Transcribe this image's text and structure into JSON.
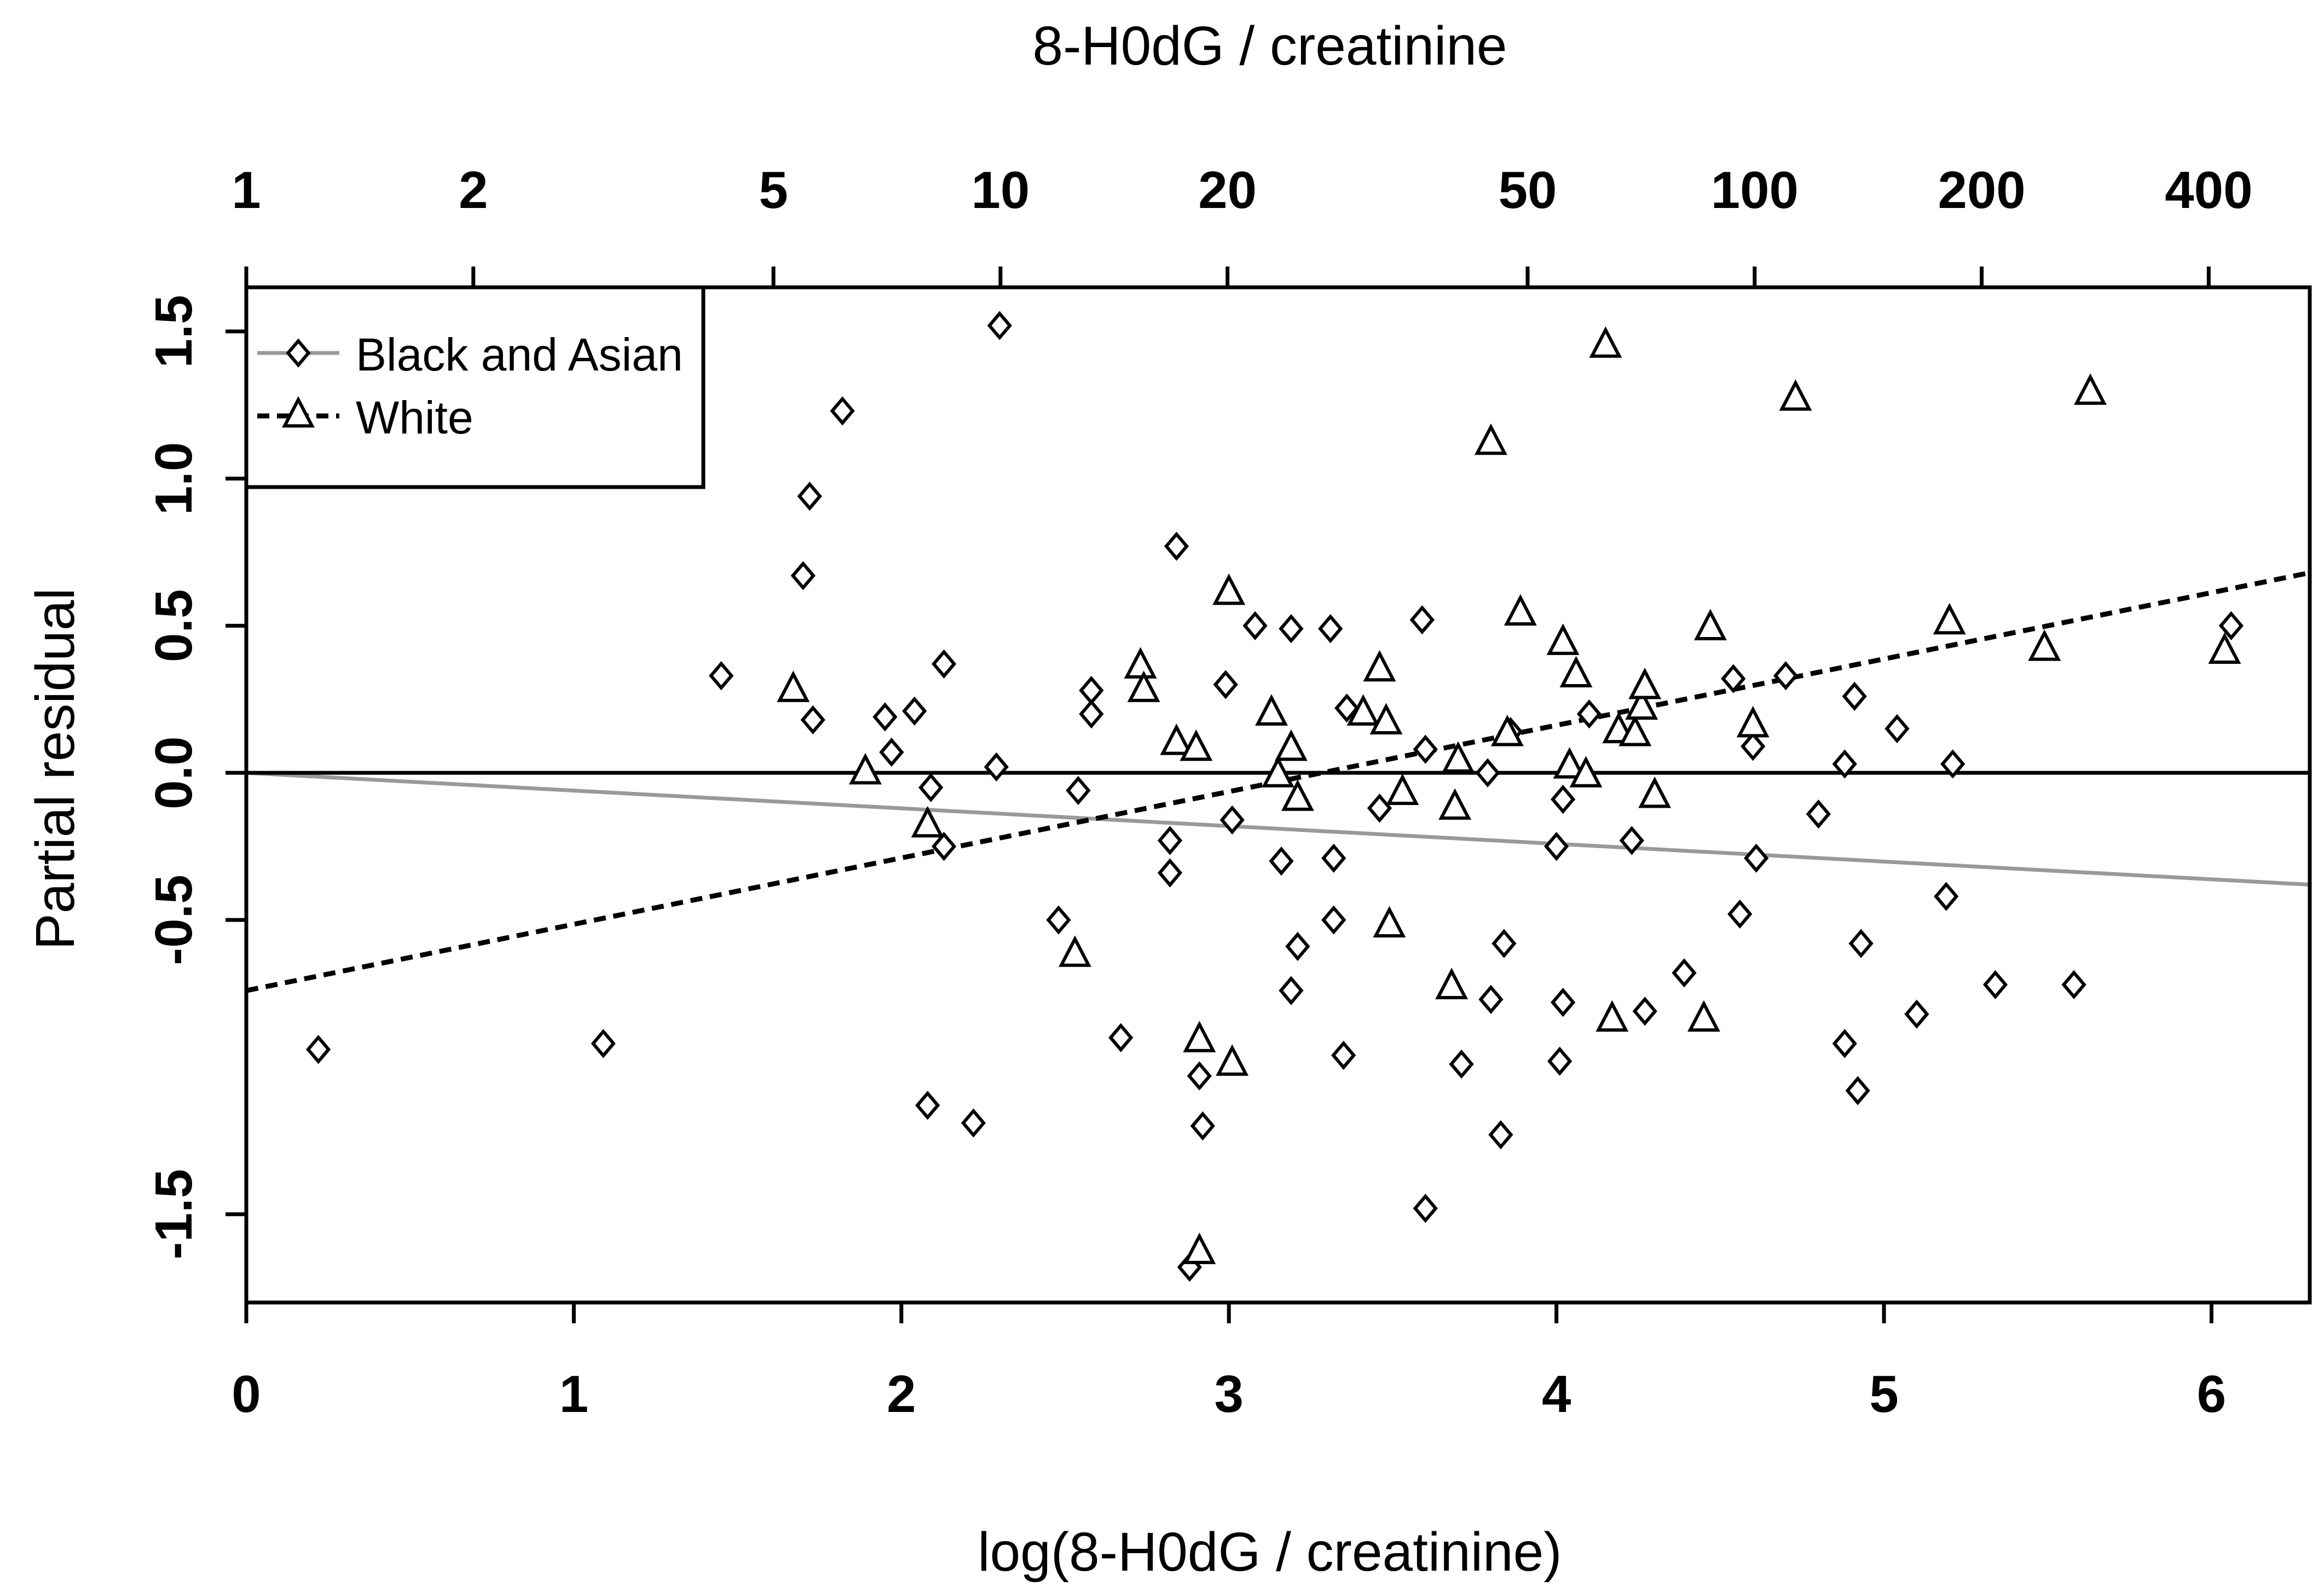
{
  "chart_data": {
    "type": "scatter",
    "title": "",
    "top_axis": {
      "label": "8-H0dG / creatinine",
      "ticks": [
        {
          "label": "1",
          "value": 1
        },
        {
          "label": "2",
          "value": 2
        },
        {
          "label": "5",
          "value": 5
        },
        {
          "label": "10",
          "value": 10
        },
        {
          "label": "20",
          "value": 20
        },
        {
          "label": "50",
          "value": 50
        },
        {
          "label": "100",
          "value": 100
        },
        {
          "label": "200",
          "value": 200
        },
        {
          "label": "400",
          "value": 400
        }
      ]
    },
    "xlabel": "log(8-H0dG / creatinine)",
    "ylabel": "Partial residual",
    "xlim": [
      0,
      6.3
    ],
    "ylim": [
      -1.8,
      1.65
    ],
    "x_ticks": [
      {
        "label": "0",
        "value": 0
      },
      {
        "label": "1",
        "value": 1
      },
      {
        "label": "2",
        "value": 2
      },
      {
        "label": "3",
        "value": 3
      },
      {
        "label": "4",
        "value": 4
      },
      {
        "label": "5",
        "value": 5
      },
      {
        "label": "6",
        "value": 6
      }
    ],
    "y_ticks": [
      {
        "label": "-1.5",
        "value": -1.5
      },
      {
        "label": "-0.5",
        "value": -0.5
      },
      {
        "label": "0.0",
        "value": 0.0
      },
      {
        "label": "0.5",
        "value": 0.5
      },
      {
        "label": "1.0",
        "value": 1.0
      },
      {
        "label": "1.5",
        "value": 1.5
      }
    ],
    "legend": {
      "placement": "top-left",
      "entries": [
        {
          "label": "Black and Asian",
          "marker": "diamond",
          "line": "solid-gray"
        },
        {
          "label": "White",
          "marker": "triangle",
          "line": "dashed-black"
        }
      ]
    },
    "reference_line": {
      "y": 0.0,
      "color": "#000000"
    },
    "fit_lines": [
      {
        "series": "Black and Asian",
        "x": [
          0,
          6.3
        ],
        "y": [
          0.0,
          -0.38
        ],
        "color": "#999999",
        "style": "solid"
      },
      {
        "series": "White",
        "x": [
          0,
          6.3
        ],
        "y": [
          -0.74,
          0.68
        ],
        "color": "#000000",
        "style": "dashed"
      }
    ],
    "series": [
      {
        "name": "Black and Asian",
        "marker": "diamond",
        "points": [
          [
            0.22,
            -0.94
          ],
          [
            1.09,
            -0.92
          ],
          [
            1.45,
            0.33
          ],
          [
            1.73,
            0.18
          ],
          [
            1.82,
            1.23
          ],
          [
            1.72,
            0.94
          ],
          [
            1.7,
            0.67
          ],
          [
            1.95,
            0.19
          ],
          [
            1.97,
            0.07
          ],
          [
            2.04,
            0.21
          ],
          [
            2.09,
            -0.05
          ],
          [
            2.13,
            0.37
          ],
          [
            2.13,
            -0.25
          ],
          [
            2.08,
            -1.13
          ],
          [
            2.22,
            -1.19
          ],
          [
            2.3,
            1.52
          ],
          [
            2.29,
            0.02
          ],
          [
            2.48,
            -0.5
          ],
          [
            2.54,
            -0.06
          ],
          [
            2.58,
            0.28
          ],
          [
            2.58,
            0.2
          ],
          [
            2.67,
            -0.9
          ],
          [
            2.84,
            0.77
          ],
          [
            2.82,
            -0.23
          ],
          [
            2.82,
            -0.34
          ],
          [
            2.88,
            -1.68
          ],
          [
            2.91,
            -1.03
          ],
          [
            2.92,
            -1.2
          ],
          [
            2.99,
            0.3
          ],
          [
            3.01,
            -0.16
          ],
          [
            3.08,
            0.5
          ],
          [
            3.16,
            -0.3
          ],
          [
            3.19,
            0.49
          ],
          [
            3.19,
            -0.74
          ],
          [
            3.21,
            -0.59
          ],
          [
            3.31,
            0.49
          ],
          [
            3.32,
            -0.29
          ],
          [
            3.32,
            -0.5
          ],
          [
            3.36,
            0.22
          ],
          [
            3.35,
            -0.96
          ],
          [
            3.46,
            -0.12
          ],
          [
            3.59,
            0.52
          ],
          [
            3.6,
            0.08
          ],
          [
            3.6,
            -1.48
          ],
          [
            3.71,
            -0.99
          ],
          [
            3.79,
            0.0
          ],
          [
            3.8,
            -0.77
          ],
          [
            3.83,
            -1.23
          ],
          [
            3.84,
            -0.58
          ],
          [
            3.86,
            0.14
          ],
          [
            4.0,
            -0.25
          ],
          [
            4.02,
            -0.09
          ],
          [
            4.02,
            -0.78
          ],
          [
            4.01,
            -0.98
          ],
          [
            4.1,
            0.2
          ],
          [
            4.23,
            -0.23
          ],
          [
            4.27,
            -0.81
          ],
          [
            4.39,
            -0.68
          ],
          [
            4.54,
            0.32
          ],
          [
            4.56,
            -0.48
          ],
          [
            4.6,
            0.09
          ],
          [
            4.61,
            -0.29
          ],
          [
            4.7,
            0.33
          ],
          [
            4.8,
            -0.14
          ],
          [
            4.88,
            0.03
          ],
          [
            4.88,
            -0.92
          ],
          [
            4.91,
            0.26
          ],
          [
            4.92,
            -1.08
          ],
          [
            4.93,
            -0.58
          ],
          [
            5.04,
            0.15
          ],
          [
            5.1,
            -0.82
          ],
          [
            5.19,
            -0.42
          ],
          [
            5.21,
            0.03
          ],
          [
            5.34,
            -0.72
          ],
          [
            5.58,
            -0.72
          ],
          [
            6.06,
            0.5
          ]
        ]
      },
      {
        "name": "White",
        "marker": "triangle",
        "points": [
          [
            1.67,
            0.28
          ],
          [
            1.89,
            0.0
          ],
          [
            2.08,
            -0.18
          ],
          [
            2.53,
            -0.62
          ],
          [
            2.73,
            0.36
          ],
          [
            2.74,
            0.28
          ],
          [
            2.84,
            0.1
          ],
          [
            2.9,
            0.08
          ],
          [
            2.91,
            -0.91
          ],
          [
            2.91,
            -1.63
          ],
          [
            3.0,
            0.61
          ],
          [
            3.01,
            -0.99
          ],
          [
            3.13,
            0.2
          ],
          [
            3.15,
            -0.01
          ],
          [
            3.19,
            0.08
          ],
          [
            3.21,
            -0.09
          ],
          [
            3.41,
            0.2
          ],
          [
            3.46,
            0.35
          ],
          [
            3.48,
            0.17
          ],
          [
            3.49,
            -0.52
          ],
          [
            3.53,
            -0.07
          ],
          [
            3.68,
            -0.73
          ],
          [
            3.7,
            0.04
          ],
          [
            3.69,
            -0.12
          ],
          [
            3.8,
            1.12
          ],
          [
            3.85,
            0.13
          ],
          [
            3.89,
            0.54
          ],
          [
            4.02,
            0.44
          ],
          [
            4.04,
            0.02
          ],
          [
            4.06,
            0.33
          ],
          [
            4.09,
            -0.01
          ],
          [
            4.15,
            1.45
          ],
          [
            4.17,
            -0.84
          ],
          [
            4.19,
            0.14
          ],
          [
            4.24,
            0.13
          ],
          [
            4.26,
            0.22
          ],
          [
            4.27,
            0.29
          ],
          [
            4.3,
            -0.08
          ],
          [
            4.45,
            -0.84
          ],
          [
            4.47,
            0.49
          ],
          [
            4.6,
            0.16
          ],
          [
            4.73,
            1.27
          ],
          [
            5.2,
            0.51
          ],
          [
            5.49,
            0.42
          ],
          [
            5.63,
            1.29
          ],
          [
            6.04,
            0.41
          ]
        ]
      }
    ]
  }
}
